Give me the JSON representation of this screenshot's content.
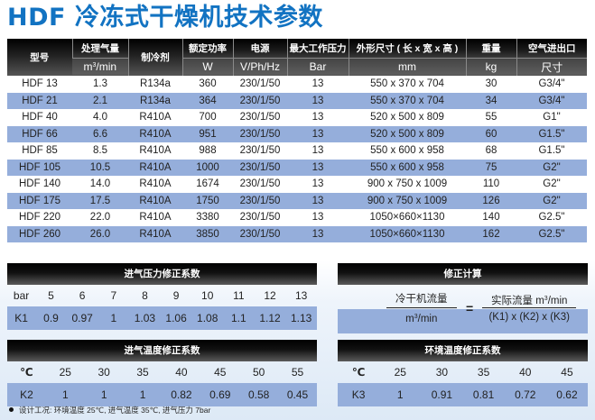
{
  "title": "HDF 冷冻式干燥机技术参数",
  "spec_table": {
    "headers_top": [
      "型号",
      "处理气量",
      "制冷剂",
      "额定功率",
      "电源",
      "最大工作压力",
      "外形尺寸 ( 长 x 宽 x 高 )",
      "重量",
      "空气进出口"
    ],
    "headers_unit": [
      "",
      "m³/min",
      "",
      "W",
      "V/Ph/Hz",
      "Bar",
      "mm",
      "kg",
      "尺寸"
    ],
    "rows": [
      [
        "HDF 13",
        "1.3",
        "R134a",
        "360",
        "230/1/50",
        "13",
        "550 x 370 x 704",
        "30",
        "G3/4\""
      ],
      [
        "HDF 21",
        "2.1",
        "R134a",
        "364",
        "230/1/50",
        "13",
        "550 x 370 x 704",
        "34",
        "G3/4\""
      ],
      [
        "HDF 40",
        "4.0",
        "R410A",
        "700",
        "230/1/50",
        "13",
        "520 x 500 x 809",
        "55",
        "G1\""
      ],
      [
        "HDF 66",
        "6.6",
        "R410A",
        "951",
        "230/1/50",
        "13",
        "520 x 500 x 809",
        "60",
        "G1.5\""
      ],
      [
        "HDF 85",
        "8.5",
        "R410A",
        "988",
        "230/1/50",
        "13",
        "550 x 600 x 958",
        "68",
        "G1.5\""
      ],
      [
        "HDF 105",
        "10.5",
        "R410A",
        "1000",
        "230/1/50",
        "13",
        "550 x 600 x 958",
        "75",
        "G2\""
      ],
      [
        "HDF 140",
        "14.0",
        "R410A",
        "1674",
        "230/1/50",
        "13",
        "900 x 750 x 1009",
        "110",
        "G2\""
      ],
      [
        "HDF 175",
        "17.5",
        "R410A",
        "1750",
        "230/1/50",
        "13",
        "900 x 750 x 1009",
        "126",
        "G2\""
      ],
      [
        "HDF 220",
        "22.0",
        "R410A",
        "3380",
        "230/1/50",
        "13",
        "1050×660×1130",
        "140",
        "G2.5\""
      ],
      [
        "HDF 260",
        "26.0",
        "R410A",
        "3850",
        "230/1/50",
        "13",
        "1050×660×1130",
        "162",
        "G2.5\""
      ]
    ]
  },
  "pressure_factor": {
    "title": "进气压力修正系数",
    "header": [
      "bar",
      "5",
      "6",
      "7",
      "8",
      "9",
      "10",
      "11",
      "12",
      "13"
    ],
    "values": [
      "K1",
      "0.9",
      "0.97",
      "1",
      "1.03",
      "1.06",
      "1.08",
      "1.1",
      "1.12",
      "1.13"
    ]
  },
  "correction_calc": {
    "title": "修正计算",
    "left_num": "冷干机流量",
    "left_den_unit": "/min",
    "equals": "=",
    "right_num_prefix": "实际流量 m",
    "right_num_suffix": "/min",
    "right_den": "(K1) x (K2) x (K3)"
  },
  "inlet_temp_factor": {
    "title": "进气温度修正系数",
    "header": [
      "℃",
      "25",
      "30",
      "35",
      "40",
      "45",
      "50",
      "55"
    ],
    "values": [
      "K2",
      "1",
      "1",
      "1",
      "0.82",
      "0.69",
      "0.58",
      "0.45"
    ]
  },
  "ambient_temp_factor": {
    "title": "环境温度修正系数",
    "header": [
      "℃",
      "25",
      "30",
      "35",
      "40",
      "45"
    ],
    "values": [
      "K3",
      "1",
      "0.91",
      "0.81",
      "0.72",
      "0.62"
    ]
  },
  "note": "设计工况: 环境温度 25℃, 进气温度 35℃, 进气压力 7bar",
  "colors": {
    "title_blue": "#1273c2",
    "row_blue": "#95aedb",
    "header_black": "#000000"
  }
}
